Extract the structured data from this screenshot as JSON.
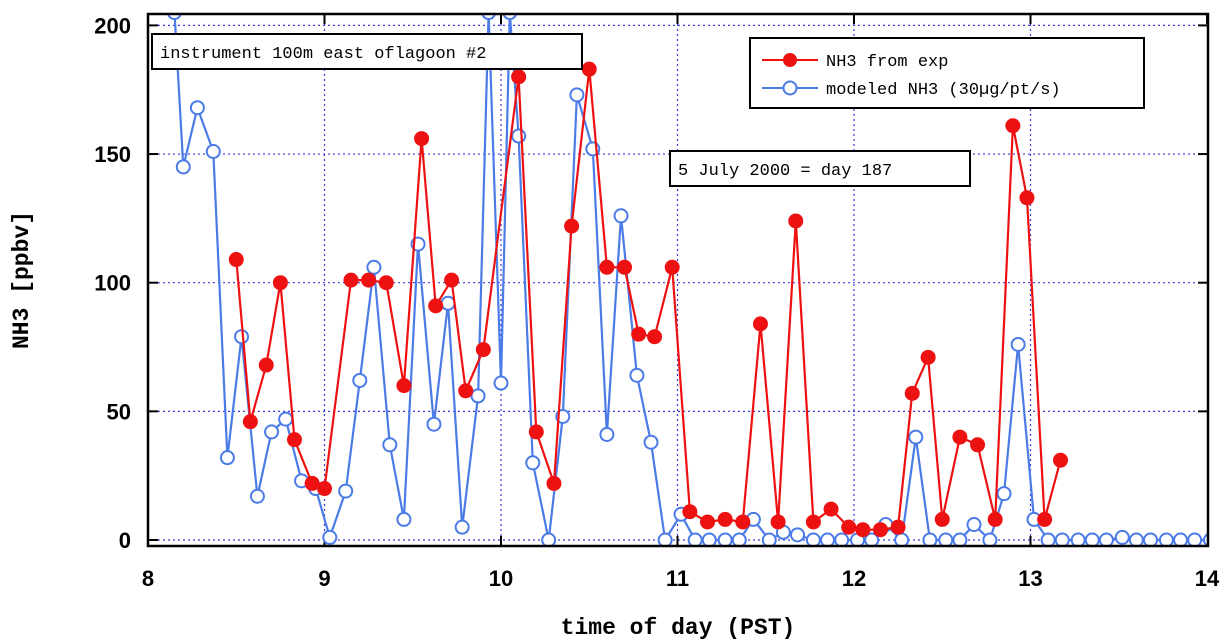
{
  "chart_data": {
    "type": "line",
    "xlabel": "time of day (PST)",
    "ylabel": "NH3 [ppbv]",
    "xlim": [
      8,
      14
    ],
    "ylim": [
      0,
      200
    ],
    "xticks": [
      "8",
      "9",
      "10",
      "11",
      "12",
      "13",
      "14"
    ],
    "yticks": [
      "0",
      "50",
      "100",
      "150",
      "200"
    ],
    "grid": true,
    "legend_position": "top-right",
    "annotations": [
      "instrument 100m east oflagoon #2",
      "5 July 2000 = day 187"
    ],
    "colors": {
      "exp": "#ee1111",
      "model": "#4b7be6"
    },
    "series": [
      {
        "name": "NH3 from exp",
        "marker": "filled-circle",
        "points": [
          [
            8.5,
            109
          ],
          [
            8.58,
            46
          ],
          [
            8.67,
            68
          ],
          [
            8.75,
            100
          ],
          [
            8.83,
            39
          ],
          [
            8.93,
            22
          ],
          [
            9.0,
            20
          ],
          [
            9.15,
            101
          ],
          [
            9.25,
            101
          ],
          [
            9.35,
            100
          ],
          [
            9.45,
            60
          ],
          [
            9.55,
            156
          ],
          [
            9.63,
            91
          ],
          [
            9.72,
            101
          ],
          [
            9.8,
            58
          ],
          [
            9.9,
            74
          ],
          [
            10.1,
            180
          ],
          [
            10.2,
            42
          ],
          [
            10.3,
            22
          ],
          [
            10.4,
            122
          ],
          [
            10.5,
            183
          ],
          [
            10.6,
            106
          ],
          [
            10.7,
            106
          ],
          [
            10.78,
            80
          ],
          [
            10.87,
            79
          ],
          [
            10.97,
            106
          ],
          [
            11.07,
            11
          ],
          [
            11.17,
            7
          ],
          [
            11.27,
            8
          ],
          [
            11.37,
            7
          ],
          [
            11.47,
            84
          ],
          [
            11.57,
            7
          ],
          [
            11.67,
            124
          ],
          [
            11.77,
            7
          ],
          [
            11.87,
            12
          ],
          [
            11.97,
            5
          ],
          [
            12.05,
            4
          ],
          [
            12.15,
            4
          ],
          [
            12.25,
            5
          ],
          [
            12.33,
            57
          ],
          [
            12.42,
            71
          ],
          [
            12.5,
            8
          ],
          [
            12.6,
            40
          ],
          [
            12.7,
            37
          ],
          [
            12.8,
            8
          ],
          [
            12.9,
            161
          ],
          [
            12.98,
            133
          ],
          [
            13.08,
            8
          ],
          [
            13.17,
            31
          ]
        ]
      },
      {
        "name": "modeled NH3 (30µg/pt/s)",
        "marker": "open-circle",
        "points": [
          [
            8.15,
            205
          ],
          [
            8.2,
            145
          ],
          [
            8.28,
            168
          ],
          [
            8.37,
            151
          ],
          [
            8.45,
            32
          ],
          [
            8.53,
            79
          ],
          [
            8.62,
            17
          ],
          [
            8.7,
            42
          ],
          [
            8.78,
            47
          ],
          [
            8.87,
            23
          ],
          [
            8.95,
            20
          ],
          [
            9.03,
            1
          ],
          [
            9.12,
            19
          ],
          [
            9.2,
            62
          ],
          [
            9.28,
            106
          ],
          [
            9.37,
            37
          ],
          [
            9.45,
            8
          ],
          [
            9.53,
            115
          ],
          [
            9.62,
            45
          ],
          [
            9.7,
            92
          ],
          [
            9.78,
            5
          ],
          [
            9.87,
            56
          ],
          [
            9.93,
            205
          ],
          [
            10.0,
            61
          ],
          [
            10.05,
            205
          ],
          [
            10.1,
            157
          ],
          [
            10.18,
            30
          ],
          [
            10.27,
            0
          ],
          [
            10.35,
            48
          ],
          [
            10.43,
            173
          ],
          [
            10.52,
            152
          ],
          [
            10.6,
            41
          ],
          [
            10.68,
            126
          ],
          [
            10.77,
            64
          ],
          [
            10.85,
            38
          ],
          [
            10.93,
            0
          ],
          [
            11.02,
            10
          ],
          [
            11.1,
            0
          ],
          [
            11.18,
            0
          ],
          [
            11.27,
            0
          ],
          [
            11.35,
            0
          ],
          [
            11.43,
            8
          ],
          [
            11.52,
            0
          ],
          [
            11.6,
            3
          ],
          [
            11.68,
            2
          ],
          [
            11.77,
            0
          ],
          [
            11.85,
            0
          ],
          [
            11.93,
            0
          ],
          [
            12.02,
            0
          ],
          [
            12.1,
            0
          ],
          [
            12.18,
            6
          ],
          [
            12.27,
            0
          ],
          [
            12.35,
            40
          ],
          [
            12.43,
            0
          ],
          [
            12.52,
            0
          ],
          [
            12.6,
            0
          ],
          [
            12.68,
            6
          ],
          [
            12.77,
            0
          ],
          [
            12.85,
            18
          ],
          [
            12.93,
            76
          ],
          [
            13.02,
            8
          ],
          [
            13.1,
            0
          ],
          [
            13.18,
            0
          ],
          [
            13.27,
            0
          ],
          [
            13.35,
            0
          ],
          [
            13.43,
            0
          ],
          [
            13.52,
            1
          ],
          [
            13.6,
            0
          ],
          [
            13.68,
            0
          ],
          [
            13.77,
            0
          ],
          [
            13.85,
            0
          ],
          [
            13.93,
            0
          ],
          [
            14.02,
            0
          ]
        ]
      }
    ]
  }
}
